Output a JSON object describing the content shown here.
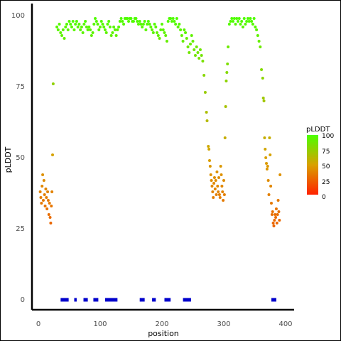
{
  "chart_data": {
    "type": "scatter",
    "xlabel": "position",
    "ylabel": "pLDDT",
    "xlim": [
      -5,
      410
    ],
    "ylim": [
      -4,
      102
    ],
    "x_ticks": [
      "0",
      "100",
      "200",
      "300",
      "400"
    ],
    "y_ticks": [
      "0",
      "25",
      "50",
      "75",
      "100"
    ],
    "grid": false,
    "legend": {
      "title": "pLDDT",
      "placement": "right",
      "labels": [
        "100",
        "75",
        "50",
        "25",
        "0"
      ],
      "colors": [
        "#ff2200",
        "#d9a000",
        "#4cff00"
      ]
    },
    "points": [
      [
        3,
        38
      ],
      [
        4,
        36
      ],
      [
        5,
        34
      ],
      [
        6,
        40
      ],
      [
        7,
        44
      ],
      [
        8,
        35
      ],
      [
        9,
        42
      ],
      [
        10,
        37
      ],
      [
        11,
        33
      ],
      [
        12,
        39
      ],
      [
        13,
        36
      ],
      [
        14,
        32
      ],
      [
        15,
        38
      ],
      [
        16,
        35
      ],
      [
        17,
        30
      ],
      [
        18,
        34
      ],
      [
        19,
        29
      ],
      [
        20,
        27
      ],
      [
        21,
        33
      ],
      [
        22,
        38
      ],
      [
        23,
        51
      ],
      [
        24,
        76
      ],
      [
        30,
        96
      ],
      [
        32,
        95
      ],
      [
        34,
        97
      ],
      [
        36,
        94
      ],
      [
        38,
        93
      ],
      [
        40,
        95
      ],
      [
        42,
        92
      ],
      [
        44,
        96
      ],
      [
        46,
        97
      ],
      [
        48,
        95
      ],
      [
        50,
        98
      ],
      [
        52,
        97
      ],
      [
        54,
        96
      ],
      [
        56,
        98
      ],
      [
        58,
        95
      ],
      [
        60,
        97
      ],
      [
        62,
        98
      ],
      [
        64,
        96
      ],
      [
        66,
        97
      ],
      [
        68,
        95
      ],
      [
        70,
        96
      ],
      [
        72,
        94
      ],
      [
        74,
        97
      ],
      [
        76,
        98
      ],
      [
        78,
        96
      ],
      [
        80,
        95
      ],
      [
        82,
        96
      ],
      [
        84,
        95
      ],
      [
        86,
        93
      ],
      [
        88,
        94
      ],
      [
        90,
        97
      ],
      [
        92,
        99
      ],
      [
        94,
        98
      ],
      [
        96,
        97
      ],
      [
        98,
        95
      ],
      [
        100,
        96
      ],
      [
        102,
        98
      ],
      [
        104,
        97
      ],
      [
        106,
        96
      ],
      [
        108,
        95
      ],
      [
        110,
        94
      ],
      [
        112,
        97
      ],
      [
        114,
        98
      ],
      [
        116,
        96
      ],
      [
        118,
        93
      ],
      [
        120,
        94
      ],
      [
        122,
        96
      ],
      [
        124,
        95
      ],
      [
        126,
        93
      ],
      [
        128,
        95
      ],
      [
        130,
        96
      ],
      [
        132,
        98
      ],
      [
        134,
        99
      ],
      [
        136,
        98
      ],
      [
        138,
        97
      ],
      [
        140,
        99
      ],
      [
        142,
        99
      ],
      [
        144,
        99
      ],
      [
        146,
        98
      ],
      [
        148,
        99
      ],
      [
        150,
        99
      ],
      [
        152,
        98
      ],
      [
        154,
        98
      ],
      [
        156,
        99
      ],
      [
        158,
        99
      ],
      [
        160,
        98
      ],
      [
        162,
        97
      ],
      [
        164,
        98
      ],
      [
        166,
        97
      ],
      [
        168,
        96
      ],
      [
        170,
        97
      ],
      [
        172,
        98
      ],
      [
        174,
        95
      ],
      [
        176,
        97
      ],
      [
        178,
        98
      ],
      [
        180,
        97
      ],
      [
        182,
        96
      ],
      [
        184,
        95
      ],
      [
        186,
        94
      ],
      [
        188,
        97
      ],
      [
        190,
        96
      ],
      [
        192,
        94
      ],
      [
        194,
        93
      ],
      [
        196,
        92
      ],
      [
        198,
        95
      ],
      [
        200,
        97
      ],
      [
        202,
        95
      ],
      [
        204,
        94
      ],
      [
        206,
        93
      ],
      [
        208,
        91
      ],
      [
        210,
        98
      ],
      [
        212,
        99
      ],
      [
        214,
        99
      ],
      [
        216,
        98
      ],
      [
        218,
        99
      ],
      [
        220,
        98
      ],
      [
        222,
        97
      ],
      [
        224,
        99
      ],
      [
        226,
        96
      ],
      [
        228,
        97
      ],
      [
        230,
        95
      ],
      [
        232,
        93
      ],
      [
        234,
        91
      ],
      [
        236,
        95
      ],
      [
        238,
        94
      ],
      [
        240,
        92
      ],
      [
        242,
        89
      ],
      [
        244,
        87
      ],
      [
        246,
        90
      ],
      [
        248,
        93
      ],
      [
        250,
        91
      ],
      [
        252,
        88
      ],
      [
        254,
        86
      ],
      [
        256,
        89
      ],
      [
        258,
        87
      ],
      [
        260,
        85
      ],
      [
        262,
        88
      ],
      [
        264,
        86
      ],
      [
        266,
        84
      ],
      [
        268,
        79
      ],
      [
        270,
        73
      ],
      [
        272,
        66
      ],
      [
        273,
        63
      ],
      [
        275,
        54
      ],
      [
        276,
        53
      ],
      [
        277,
        49
      ],
      [
        278,
        47
      ],
      [
        279,
        44
      ],
      [
        280,
        42
      ],
      [
        281,
        40
      ],
      [
        282,
        38
      ],
      [
        283,
        36
      ],
      [
        284,
        41
      ],
      [
        285,
        43
      ],
      [
        286,
        39
      ],
      [
        287,
        42
      ],
      [
        288,
        37
      ],
      [
        289,
        45
      ],
      [
        290,
        40
      ],
      [
        291,
        38
      ],
      [
        292,
        43
      ],
      [
        293,
        37
      ],
      [
        294,
        36
      ],
      [
        295,
        47
      ],
      [
        296,
        44
      ],
      [
        297,
        40
      ],
      [
        298,
        38
      ],
      [
        299,
        35
      ],
      [
        300,
        42
      ],
      [
        301,
        37
      ],
      [
        302,
        57
      ],
      [
        303,
        68
      ],
      [
        304,
        77
      ],
      [
        305,
        80
      ],
      [
        306,
        83
      ],
      [
        307,
        89
      ],
      [
        309,
        97
      ],
      [
        311,
        98
      ],
      [
        313,
        99
      ],
      [
        315,
        98
      ],
      [
        317,
        99
      ],
      [
        319,
        97
      ],
      [
        321,
        99
      ],
      [
        323,
        98
      ],
      [
        325,
        99
      ],
      [
        327,
        97
      ],
      [
        329,
        98
      ],
      [
        331,
        96
      ],
      [
        333,
        99
      ],
      [
        335,
        97
      ],
      [
        337,
        98
      ],
      [
        339,
        99
      ],
      [
        341,
        98
      ],
      [
        343,
        99
      ],
      [
        345,
        98
      ],
      [
        347,
        97
      ],
      [
        349,
        99
      ],
      [
        351,
        96
      ],
      [
        353,
        95
      ],
      [
        355,
        93
      ],
      [
        357,
        91
      ],
      [
        359,
        89
      ],
      [
        361,
        81
      ],
      [
        363,
        78
      ],
      [
        364,
        71
      ],
      [
        365,
        70
      ],
      [
        366,
        57
      ],
      [
        367,
        53
      ],
      [
        368,
        50
      ],
      [
        369,
        48
      ],
      [
        370,
        46
      ],
      [
        371,
        47
      ],
      [
        372,
        42
      ],
      [
        373,
        37
      ],
      [
        374,
        57
      ],
      [
        375,
        51
      ],
      [
        376,
        40
      ],
      [
        377,
        34
      ],
      [
        378,
        30
      ],
      [
        379,
        31
      ],
      [
        380,
        27
      ],
      [
        381,
        26
      ],
      [
        382,
        28
      ],
      [
        383,
        30
      ],
      [
        384,
        29
      ],
      [
        385,
        32
      ],
      [
        386,
        27
      ],
      [
        387,
        30
      ],
      [
        388,
        35
      ],
      [
        389,
        31
      ],
      [
        390,
        28
      ],
      [
        391,
        44
      ]
    ],
    "bars_at_zero": [
      [
        36,
        49
      ],
      [
        58,
        62
      ],
      [
        73,
        80
      ],
      [
        89,
        97
      ],
      [
        108,
        128
      ],
      [
        164,
        172
      ],
      [
        184,
        190
      ],
      [
        204,
        214
      ],
      [
        234,
        247
      ],
      [
        377,
        385
      ]
    ],
    "bar_color": "#0000cc"
  }
}
